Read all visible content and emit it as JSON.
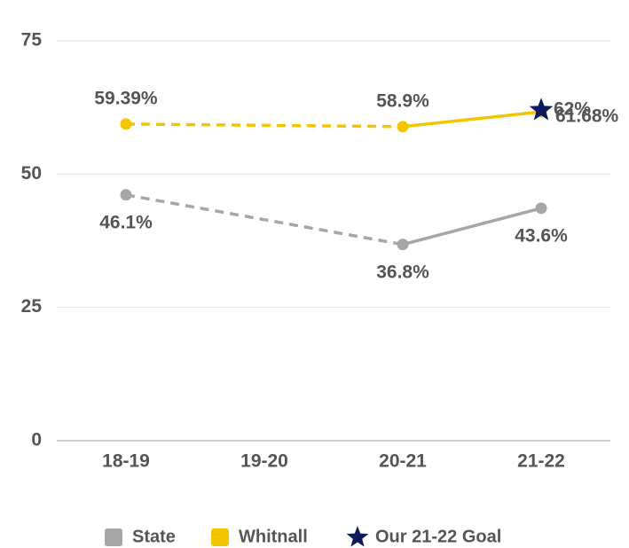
{
  "chart_data": {
    "type": "line",
    "categories": [
      "18-19",
      "19-20",
      "20-21",
      "21-22"
    ],
    "series": [
      {
        "name": "State",
        "color": "#a6a6a6",
        "values": [
          46.1,
          null,
          36.8,
          43.6
        ],
        "value_labels": [
          "46.1%",
          null,
          "36.8%",
          "43.6%"
        ]
      },
      {
        "name": "Whitnall",
        "color": "#f2c500",
        "values": [
          59.39,
          null,
          58.9,
          61.68
        ],
        "value_labels": [
          "59.39%",
          null,
          "58.9%",
          "61.68%"
        ]
      },
      {
        "name": "Our 21-22 Goal",
        "color": "#0d1b5e",
        "marker": "star",
        "values": [
          null,
          null,
          null,
          62
        ],
        "value_labels": [
          null,
          null,
          null,
          "62%"
        ]
      }
    ],
    "ylim": [
      0,
      75
    ],
    "yticks": [
      0,
      25,
      50,
      75
    ],
    "grid": true,
    "legend": "bottom"
  }
}
